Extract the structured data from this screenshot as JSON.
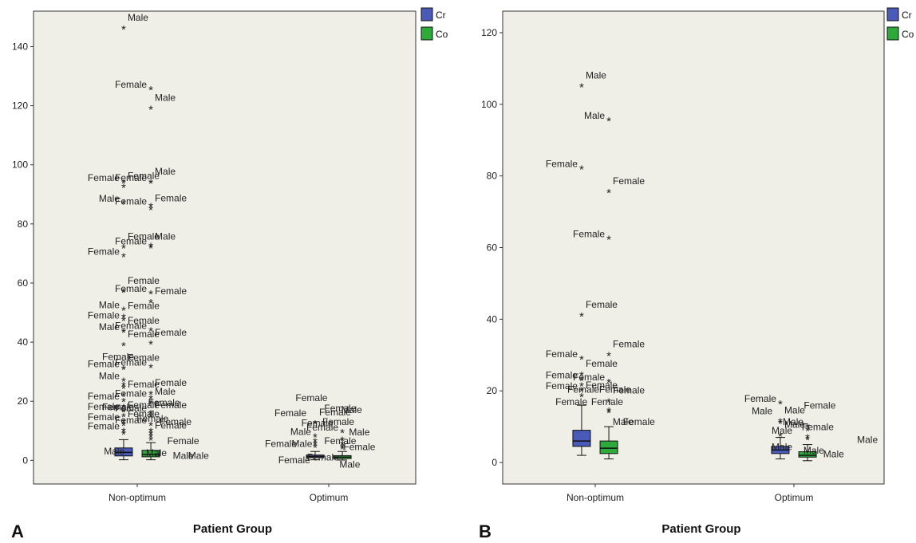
{
  "chart_data": [
    {
      "type": "box",
      "panel_label": "A",
      "xlabel": "Patient Group",
      "ylabel": "",
      "categories": [
        "Non-optimum",
        "Optimum"
      ],
      "ylim": [
        -8,
        152
      ],
      "yticks": [
        0,
        20,
        40,
        60,
        80,
        100,
        120,
        140
      ],
      "legend": {
        "placement": "top-right"
      },
      "series": [
        {
          "name": "Cr",
          "color": "#4a5ab8",
          "boxes": [
            {
              "category": "Non-optimum",
              "whisker_low": 0.2,
              "q1": 1.5,
              "median": 2.7,
              "q3": 4.2,
              "whisker_high": 7
            },
            {
              "category": "Optimum",
              "whisker_low": 0.2,
              "q1": 0.9,
              "median": 1.3,
              "q3": 1.8,
              "whisker_high": 3
            }
          ]
        },
        {
          "name": "Co",
          "color": "#2eaa3a",
          "boxes": [
            {
              "category": "Non-optimum",
              "whisker_low": 0.2,
              "q1": 1.2,
              "median": 2,
              "q3": 3.4,
              "whisker_high": 6
            },
            {
              "category": "Optimum",
              "whisker_low": 0.1,
              "q1": 0.6,
              "median": 1.1,
              "q3": 1.6,
              "whisker_high": 3
            }
          ]
        }
      ],
      "outliers": [
        {
          "series": "Cr",
          "category": "Non-optimum",
          "y": 146,
          "label": "Male"
        },
        {
          "series": "Cr",
          "category": "Non-optimum",
          "y": 94,
          "label": "Female"
        },
        {
          "series": "Cr",
          "category": "Non-optimum",
          "y": 92.5,
          "label": "Female"
        },
        {
          "series": "Cr",
          "category": "Non-optimum",
          "y": 87,
          "label": "Male"
        },
        {
          "series": "Cr",
          "category": "Non-optimum",
          "y": 72,
          "label": "Female"
        },
        {
          "series": "Cr",
          "category": "Non-optimum",
          "y": 69,
          "label": "Female"
        },
        {
          "series": "Cr",
          "category": "Non-optimum",
          "y": 57,
          "label": "Female"
        },
        {
          "series": "Cr",
          "category": "Non-optimum",
          "y": 51,
          "label": "Male"
        },
        {
          "series": "Cr",
          "category": "Non-optimum",
          "y": 48.5,
          "label": "Female"
        },
        {
          "series": "Cr",
          "category": "Non-optimum",
          "y": 47.5,
          "label": "Female"
        },
        {
          "series": "Cr",
          "category": "Non-optimum",
          "y": 43.5,
          "label": "Female"
        },
        {
          "series": "Cr",
          "category": "Non-optimum",
          "y": 43.5,
          "label": "Male"
        },
        {
          "series": "Cr",
          "category": "Non-optimum",
          "y": 39,
          "label": "Female"
        },
        {
          "series": "Cr",
          "category": "Non-optimum",
          "y": 31,
          "label": "Female"
        },
        {
          "series": "Cr",
          "category": "Non-optimum",
          "y": 31,
          "label": "Female"
        },
        {
          "series": "Cr",
          "category": "Non-optimum",
          "y": 27,
          "label": "Male"
        },
        {
          "series": "Cr",
          "category": "Non-optimum",
          "y": 25.5,
          "label": ""
        },
        {
          "series": "Cr",
          "category": "Non-optimum",
          "y": 24.5,
          "label": ""
        },
        {
          "series": "Cr",
          "category": "Non-optimum",
          "y": 22,
          "label": "Female"
        },
        {
          "series": "Cr",
          "category": "Non-optimum",
          "y": 20,
          "label": "Female"
        },
        {
          "series": "Cr",
          "category": "Non-optimum",
          "y": 18,
          "label": ""
        },
        {
          "series": "Cr",
          "category": "Non-optimum",
          "y": 16.5,
          "label": "Female"
        },
        {
          "series": "Cr",
          "category": "Non-optimum",
          "y": 15,
          "label": "Female"
        },
        {
          "series": "Cr",
          "category": "Non-optimum",
          "y": 13,
          "label": "Female"
        },
        {
          "series": "Cr",
          "category": "Non-optimum",
          "y": 12,
          "label": "Female"
        },
        {
          "series": "Cr",
          "category": "Non-optimum",
          "y": 10,
          "label": "Female"
        },
        {
          "series": "Cr",
          "category": "Non-optimum",
          "y": 9,
          "label": ""
        },
        {
          "series": "Co",
          "category": "Non-optimum",
          "y": 125.5,
          "label": "Female"
        },
        {
          "series": "Co",
          "category": "Non-optimum",
          "y": 119,
          "label": "Male"
        },
        {
          "series": "Co",
          "category": "Non-optimum",
          "y": 94,
          "label": "Female"
        },
        {
          "series": "Co",
          "category": "Non-optimum",
          "y": 94,
          "label": "Male"
        },
        {
          "series": "Co",
          "category": "Non-optimum",
          "y": 86,
          "label": "Female"
        },
        {
          "series": "Co",
          "category": "Non-optimum",
          "y": 85,
          "label": "Female"
        },
        {
          "series": "Co",
          "category": "Non-optimum",
          "y": 72.5,
          "label": "Female"
        },
        {
          "series": "Co",
          "category": "Non-optimum",
          "y": 72,
          "label": "Male"
        },
        {
          "series": "Co",
          "category": "Non-optimum",
          "y": 56.5,
          "label": "Female"
        },
        {
          "series": "Co",
          "category": "Non-optimum",
          "y": 53.5,
          "label": "Female"
        },
        {
          "series": "Co",
          "category": "Non-optimum",
          "y": 44,
          "label": "Female"
        },
        {
          "series": "Co",
          "category": "Non-optimum",
          "y": 39.5,
          "label": "Female"
        },
        {
          "series": "Co",
          "category": "Non-optimum",
          "y": 31.5,
          "label": "Female"
        },
        {
          "series": "Co",
          "category": "Non-optimum",
          "y": 22.5,
          "label": "Female"
        },
        {
          "series": "Co",
          "category": "Non-optimum",
          "y": 21,
          "label": "Female"
        },
        {
          "series": "Co",
          "category": "Non-optimum",
          "y": 19.5,
          "label": "Male"
        },
        {
          "series": "Co",
          "category": "Non-optimum",
          "y": 16,
          "label": "Female"
        },
        {
          "series": "Co",
          "category": "Non-optimum",
          "y": 15,
          "label": "Female"
        },
        {
          "series": "Co",
          "category": "Non-optimum",
          "y": 12,
          "label": "Female"
        },
        {
          "series": "Co",
          "category": "Non-optimum",
          "y": 10,
          "label": ""
        },
        {
          "series": "Co",
          "category": "Non-optimum",
          "y": 9,
          "label": ""
        },
        {
          "series": "Co",
          "category": "Non-optimum",
          "y": 8,
          "label": "Female"
        },
        {
          "series": "Co",
          "category": "Non-optimum",
          "y": 7,
          "label": ""
        },
        {
          "series": "Cr",
          "category": "Optimum",
          "y": 12.5,
          "label": "Female"
        },
        {
          "series": "Cr",
          "category": "Optimum",
          "y": 8,
          "label": "Male"
        },
        {
          "series": "Cr",
          "category": "Optimum",
          "y": 6.5,
          "label": ""
        },
        {
          "series": "Cr",
          "category": "Optimum",
          "y": 5.5,
          "label": ""
        },
        {
          "series": "Cr",
          "category": "Optimum",
          "y": 4.5,
          "label": ""
        },
        {
          "series": "Co",
          "category": "Optimum",
          "y": 9.5,
          "label": "Female"
        },
        {
          "series": "Co",
          "category": "Optimum",
          "y": 7,
          "label": ""
        },
        {
          "series": "Co",
          "category": "Optimum",
          "y": 5.5,
          "label": ""
        },
        {
          "series": "Co",
          "category": "Optimum",
          "y": 4.5,
          "label": ""
        },
        {
          "series": "Co",
          "category": "Optimum",
          "y": 4,
          "label": ""
        }
      ],
      "free_labels": [
        {
          "category": "Non-optimum",
          "offset": -0.1,
          "y": 34,
          "text": "Female"
        },
        {
          "category": "Non-optimum",
          "offset": -0.1,
          "y": 17,
          "text": "Female"
        },
        {
          "category": "Non-optimum",
          "offset": -0.12,
          "y": 2,
          "text": "Male"
        },
        {
          "category": "Non-optimum",
          "offset": 0.1,
          "y": 1.5,
          "text": "Male"
        },
        {
          "category": "Non-optimum",
          "offset": 0.08,
          "y": 13,
          "text": "Female"
        },
        {
          "category": "Non-optimum",
          "offset": 0.14,
          "y": 18.5,
          "text": "Female"
        },
        {
          "category": "Non-optimum",
          "offset": 0.2,
          "y": 12,
          "text": "Female"
        },
        {
          "category": "Non-optimum",
          "offset": 0.24,
          "y": 5.5,
          "text": "Female"
        },
        {
          "category": "Non-optimum",
          "offset": 0.24,
          "y": 0.5,
          "text": "Male"
        },
        {
          "category": "Non-optimum",
          "offset": 0.32,
          "y": 0.5,
          "text": "Male"
        },
        {
          "category": "Optimum",
          "offset": -0.09,
          "y": 20,
          "text": "Female"
        },
        {
          "category": "Optimum",
          "offset": -0.2,
          "y": 15,
          "text": "Female"
        },
        {
          "category": "Optimum",
          "offset": -0.06,
          "y": 11.5,
          "text": "Female"
        },
        {
          "category": "Optimum",
          "offset": -0.25,
          "y": 4.5,
          "text": "Female"
        },
        {
          "category": "Optimum",
          "offset": -0.14,
          "y": 4.5,
          "text": "Male"
        },
        {
          "category": "Optimum",
          "offset": -0.18,
          "y": -1,
          "text": "Female"
        },
        {
          "category": "Optimum",
          "offset": -0.03,
          "y": 0,
          "text": "Female"
        },
        {
          "category": "Optimum",
          "offset": 0.06,
          "y": 16.5,
          "text": "Female"
        },
        {
          "category": "Optimum",
          "offset": 0.12,
          "y": 16,
          "text": "Male"
        },
        {
          "category": "Optimum",
          "offset": 0.05,
          "y": 12,
          "text": "Female"
        },
        {
          "category": "Optimum",
          "offset": 0.06,
          "y": 5.5,
          "text": "Female"
        },
        {
          "category": "Optimum",
          "offset": 0.16,
          "y": 8.5,
          "text": "Male"
        },
        {
          "category": "Optimum",
          "offset": 0.16,
          "y": 3.5,
          "text": "Female"
        },
        {
          "category": "Optimum",
          "offset": 0.11,
          "y": -2.5,
          "text": "Male"
        }
      ]
    },
    {
      "type": "box",
      "panel_label": "B",
      "xlabel": "Patient Group",
      "ylabel": "",
      "categories": [
        "Non-optimum",
        "Optimum"
      ],
      "ylim": [
        -6,
        126
      ],
      "yticks": [
        0,
        20,
        40,
        60,
        80,
        100,
        120
      ],
      "legend": {
        "placement": "top-right"
      },
      "series": [
        {
          "name": "Cr",
          "color": "#4a5ab8",
          "boxes": [
            {
              "category": "Non-optimum",
              "whisker_low": 2,
              "q1": 4.5,
              "median": 6,
              "q3": 9,
              "whisker_high": 16
            },
            {
              "category": "Optimum",
              "whisker_low": 1,
              "q1": 2.5,
              "median": 3.5,
              "q3": 4.5,
              "whisker_high": 7
            }
          ]
        },
        {
          "name": "Co",
          "color": "#2eaa3a",
          "boxes": [
            {
              "category": "Non-optimum",
              "whisker_low": 1,
              "q1": 2.5,
              "median": 4,
              "q3": 6,
              "whisker_high": 10
            },
            {
              "category": "Optimum",
              "whisker_low": 0.5,
              "q1": 1.5,
              "median": 2,
              "q3": 3,
              "whisker_high": 5
            }
          ]
        }
      ],
      "outliers": [
        {
          "series": "Cr",
          "category": "Non-optimum",
          "y": 105,
          "label": "Male"
        },
        {
          "series": "Cr",
          "category": "Non-optimum",
          "y": 82,
          "label": "Female"
        },
        {
          "series": "Cr",
          "category": "Non-optimum",
          "y": 41,
          "label": "Female"
        },
        {
          "series": "Cr",
          "category": "Non-optimum",
          "y": 29,
          "label": "Female"
        },
        {
          "series": "Cr",
          "category": "Non-optimum",
          "y": 24.5,
          "label": "Female"
        },
        {
          "series": "Cr",
          "category": "Non-optimum",
          "y": 23,
          "label": "Female"
        },
        {
          "series": "Cr",
          "category": "Non-optimum",
          "y": 21.5,
          "label": ""
        },
        {
          "series": "Cr",
          "category": "Non-optimum",
          "y": 20,
          "label": "Female"
        },
        {
          "series": "Cr",
          "category": "Non-optimum",
          "y": 18.5,
          "label": "Female"
        },
        {
          "series": "Co",
          "category": "Non-optimum",
          "y": 95.5,
          "label": "Male"
        },
        {
          "series": "Co",
          "category": "Non-optimum",
          "y": 75.5,
          "label": "Female"
        },
        {
          "series": "Co",
          "category": "Non-optimum",
          "y": 62.5,
          "label": "Female"
        },
        {
          "series": "Co",
          "category": "Non-optimum",
          "y": 30,
          "label": "Female"
        },
        {
          "series": "Co",
          "category": "Non-optimum",
          "y": 22.5,
          "label": "Female"
        },
        {
          "series": "Co",
          "category": "Non-optimum",
          "y": 17,
          "label": "Female"
        },
        {
          "series": "Co",
          "category": "Non-optimum",
          "y": 14.5,
          "label": ""
        },
        {
          "series": "Co",
          "category": "Non-optimum",
          "y": 14,
          "label": ""
        },
        {
          "series": "Cr",
          "category": "Optimum",
          "y": 16.5,
          "label": "Female"
        },
        {
          "series": "Cr",
          "category": "Optimum",
          "y": 11.5,
          "label": "Male"
        },
        {
          "series": "Cr",
          "category": "Optimum",
          "y": 11,
          "label": ""
        },
        {
          "series": "Cr",
          "category": "Optimum",
          "y": 7.5,
          "label": "Male"
        },
        {
          "series": "Co",
          "category": "Optimum",
          "y": 10,
          "label": "Male"
        },
        {
          "series": "Co",
          "category": "Optimum",
          "y": 9,
          "label": ""
        },
        {
          "series": "Co",
          "category": "Optimum",
          "y": 7,
          "label": ""
        },
        {
          "series": "Co",
          "category": "Optimum",
          "y": 6.5,
          "label": ""
        }
      ],
      "free_labels": [
        {
          "category": "Non-optimum",
          "offset": -0.12,
          "y": 16,
          "text": "Female"
        },
        {
          "category": "Non-optimum",
          "offset": 0.06,
          "y": 16,
          "text": "Female"
        },
        {
          "category": "Non-optimum",
          "offset": 0.1,
          "y": 19.5,
          "text": "Female"
        },
        {
          "category": "Non-optimum",
          "offset": -0.06,
          "y": 19.5,
          "text": "Female"
        },
        {
          "category": "Non-optimum",
          "offset": 0.14,
          "y": 10.5,
          "text": "Male"
        },
        {
          "category": "Non-optimum",
          "offset": 0.22,
          "y": 10.5,
          "text": "Female"
        },
        {
          "category": "Optimum",
          "offset": -0.16,
          "y": 13.5,
          "text": "Male"
        },
        {
          "category": "Optimum",
          "offset": -0.06,
          "y": 8,
          "text": "Male"
        },
        {
          "category": "Optimum",
          "offset": -0.06,
          "y": 3.5,
          "text": "Male"
        },
        {
          "category": "Optimum",
          "offset": 0.13,
          "y": 15,
          "text": "Female"
        },
        {
          "category": "Optimum",
          "offset": 0.12,
          "y": 9,
          "text": "Female"
        },
        {
          "category": "Optimum",
          "offset": 0.1,
          "y": 2.5,
          "text": "Male"
        },
        {
          "category": "Optimum",
          "offset": 0.2,
          "y": 1.5,
          "text": "Male"
        },
        {
          "category": "Optimum",
          "offset": 0.37,
          "y": 5.5,
          "text": "Male"
        }
      ]
    }
  ]
}
